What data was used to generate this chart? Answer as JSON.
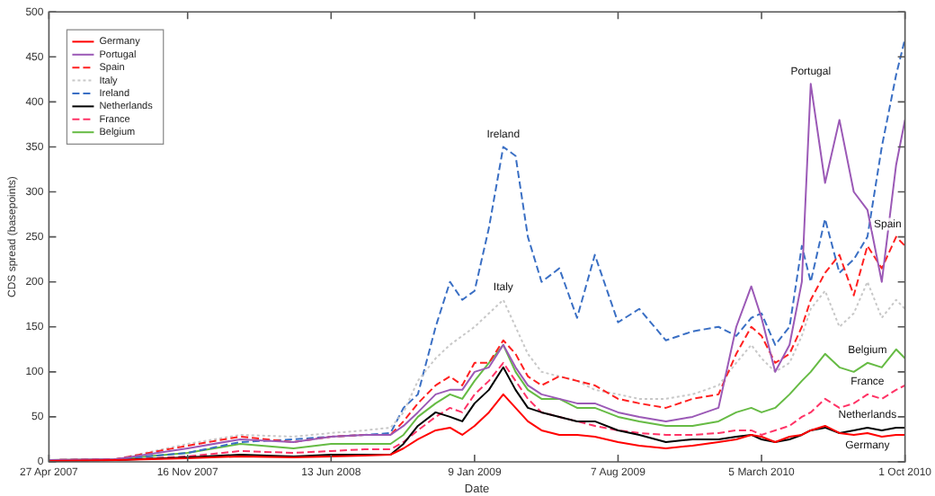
{
  "chart_data": {
    "type": "line",
    "xlabel": "Date",
    "ylabel": "CDS spread (basepoints)",
    "x": [
      "2007-04-27",
      "2007-08-03",
      "2007-11-16",
      "2008-02-01",
      "2008-04-19",
      "2008-06-13",
      "2008-08-01",
      "2008-09-08",
      "2008-09-27",
      "2008-10-18",
      "2008-11-13",
      "2008-12-04",
      "2008-12-22",
      "2009-01-09",
      "2009-01-30",
      "2009-02-20",
      "2009-03-10",
      "2009-03-28",
      "2009-04-17",
      "2009-05-13",
      "2009-06-08",
      "2009-07-04",
      "2009-08-07",
      "2009-09-07",
      "2009-10-16",
      "2009-11-24",
      "2010-01-01",
      "2010-01-27",
      "2010-02-18",
      "2010-03-05",
      "2010-03-25",
      "2010-04-15",
      "2010-05-03",
      "2010-05-16",
      "2010-06-06",
      "2010-06-27",
      "2010-07-18",
      "2010-08-07",
      "2010-08-28",
      "2010-09-18",
      "2010-10-01"
    ],
    "series": [
      {
        "name": "Germany",
        "color": "#ff0000",
        "line_style": "solid",
        "values": [
          1,
          2,
          4,
          6,
          5,
          6,
          7,
          8,
          15,
          25,
          35,
          38,
          30,
          40,
          55,
          75,
          60,
          45,
          35,
          30,
          30,
          28,
          22,
          18,
          15,
          18,
          22,
          25,
          30,
          28,
          22,
          28,
          30,
          35,
          40,
          32,
          30,
          32,
          28,
          30,
          30
        ]
      },
      {
        "name": "Portugal",
        "color": "#9b59b6",
        "line_style": "solid",
        "values": [
          2,
          3,
          15,
          25,
          22,
          28,
          30,
          30,
          40,
          55,
          75,
          80,
          80,
          100,
          105,
          130,
          105,
          85,
          75,
          70,
          65,
          65,
          55,
          50,
          45,
          50,
          60,
          150,
          195,
          160,
          100,
          130,
          200,
          420,
          310,
          380,
          300,
          280,
          200,
          330,
          380
        ]
      },
      {
        "name": "Spain",
        "color": "#ff2020",
        "line_style": "dashed",
        "values": [
          2,
          3,
          18,
          28,
          22,
          28,
          30,
          30,
          45,
          65,
          85,
          95,
          85,
          110,
          110,
          135,
          120,
          95,
          85,
          95,
          90,
          85,
          70,
          65,
          60,
          70,
          75,
          120,
          150,
          140,
          110,
          120,
          150,
          180,
          210,
          230,
          185,
          240,
          215,
          250,
          240
        ]
      },
      {
        "name": "Italy",
        "color": "#c8c8c8",
        "line_style": "dotted",
        "values": [
          2,
          3,
          20,
          30,
          28,
          32,
          35,
          38,
          55,
          90,
          115,
          130,
          140,
          150,
          165,
          180,
          150,
          120,
          100,
          95,
          90,
          80,
          75,
          70,
          70,
          75,
          85,
          110,
          130,
          115,
          100,
          110,
          140,
          170,
          190,
          150,
          165,
          200,
          160,
          180,
          170
        ]
      },
      {
        "name": "Ireland",
        "color": "#3a6fc4",
        "line_style": "dashed",
        "values": [
          2,
          3,
          10,
          22,
          25,
          28,
          30,
          32,
          60,
          75,
          150,
          200,
          180,
          190,
          260,
          350,
          340,
          250,
          200,
          215,
          160,
          230,
          155,
          170,
          135,
          145,
          150,
          140,
          160,
          165,
          130,
          150,
          240,
          200,
          270,
          210,
          225,
          250,
          350,
          430,
          470
        ]
      },
      {
        "name": "Netherlands",
        "color": "#000000",
        "line_style": "solid",
        "values": [
          1,
          2,
          5,
          8,
          6,
          8,
          8,
          8,
          20,
          40,
          55,
          50,
          45,
          65,
          80,
          105,
          80,
          60,
          55,
          50,
          45,
          45,
          35,
          30,
          22,
          25,
          25,
          28,
          30,
          25,
          22,
          25,
          30,
          35,
          38,
          32,
          35,
          38,
          35,
          38,
          38
        ]
      },
      {
        "name": "France",
        "color": "#ff3366",
        "line_style": "dashed",
        "values": [
          1,
          2,
          6,
          12,
          10,
          12,
          14,
          14,
          22,
          35,
          50,
          60,
          55,
          75,
          90,
          110,
          90,
          70,
          55,
          50,
          45,
          40,
          35,
          32,
          30,
          30,
          32,
          35,
          35,
          30,
          35,
          40,
          50,
          55,
          70,
          60,
          65,
          75,
          70,
          80,
          85
        ]
      },
      {
        "name": "Belgium",
        "color": "#66bb44",
        "line_style": "solid",
        "values": [
          2,
          3,
          10,
          20,
          15,
          20,
          20,
          20,
          30,
          50,
          65,
          75,
          70,
          90,
          110,
          130,
          100,
          80,
          70,
          70,
          60,
          60,
          50,
          45,
          40,
          40,
          45,
          55,
          60,
          55,
          60,
          75,
          90,
          100,
          120,
          105,
          100,
          110,
          105,
          125,
          115
        ]
      }
    ],
    "xlim": [
      "2007-04-27",
      "2010-10-01"
    ],
    "xticks": [
      {
        "value": "2007-04-27",
        "label": "27 Apr 2007"
      },
      {
        "value": "2007-11-16",
        "label": "16 Nov 2007"
      },
      {
        "value": "2008-06-13",
        "label": "13 Jun 2008"
      },
      {
        "value": "2009-01-09",
        "label": "9 Jan 2009"
      },
      {
        "value": "2009-08-07",
        "label": "7 Aug 2009"
      },
      {
        "value": "2010-03-05",
        "label": "5 March 2010"
      },
      {
        "value": "2010-10-01",
        "label": "1 Oct 2010"
      }
    ],
    "ylim": [
      0,
      500
    ],
    "yticks": [
      0,
      50,
      100,
      150,
      200,
      250,
      300,
      350,
      400,
      450,
      500
    ],
    "annotations": [
      {
        "text": "Ireland",
        "x": "2009-02-20",
        "y": 350
      },
      {
        "text": "Italy",
        "x": "2009-02-20",
        "y": 180
      },
      {
        "text": "Portugal",
        "x": "2010-05-16",
        "y": 420
      },
      {
        "text": "Spain",
        "x": "2010-09-18",
        "y": 250
      },
      {
        "text": "Belgium",
        "x": "2010-08-07",
        "y": 110
      },
      {
        "text": "France",
        "x": "2010-08-07",
        "y": 75
      },
      {
        "text": "Netherlands",
        "x": "2010-08-07",
        "y": 38
      },
      {
        "text": "Germany",
        "x": "2010-08-07",
        "y": 32
      }
    ],
    "grid": false,
    "legend": "top left",
    "marker": "none"
  }
}
